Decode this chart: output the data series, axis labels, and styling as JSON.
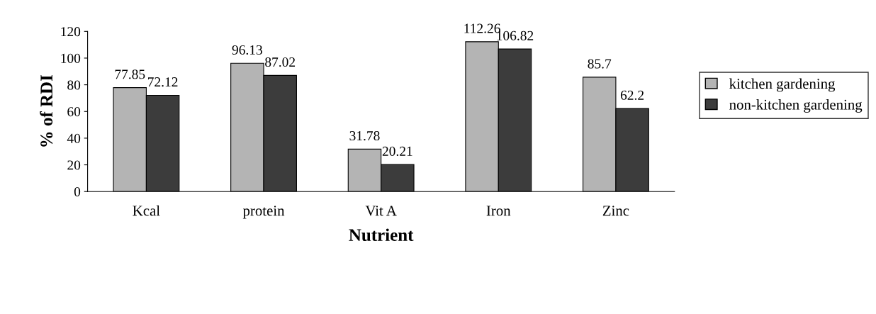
{
  "chart_data": {
    "type": "bar",
    "xlabel": "Nutrient",
    "ylabel": "% of RDI",
    "categories": [
      "Kcal",
      "protein",
      "Vit A",
      "Iron",
      "Zinc"
    ],
    "series": [
      {
        "name": "kitchen gardening",
        "color": "#b4b4b4",
        "values": [
          77.85,
          96.13,
          31.78,
          112.26,
          85.7
        ]
      },
      {
        "name": "non-kitchen gardening",
        "color": "#3c3c3c",
        "values": [
          72.12,
          87.02,
          20.21,
          106.82,
          62.2
        ]
      }
    ],
    "ylim": [
      0,
      120
    ],
    "yticks": [
      0,
      20,
      40,
      60,
      80,
      100,
      120
    ],
    "data_labels": true,
    "legend": "right",
    "grid": false
  }
}
